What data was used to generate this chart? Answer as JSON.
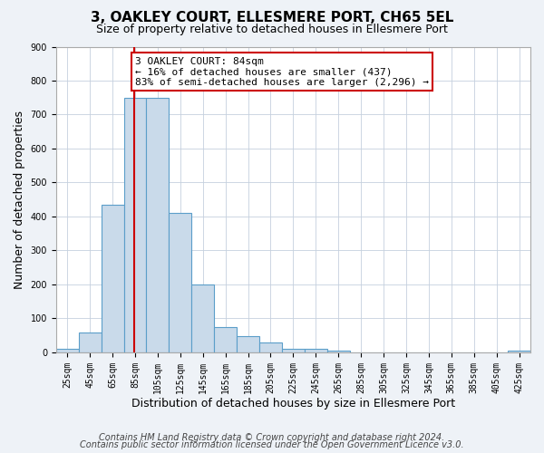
{
  "title": "3, OAKLEY COURT, ELLESMERE PORT, CH65 5EL",
  "subtitle": "Size of property relative to detached houses in Ellesmere Port",
  "xlabel": "Distribution of detached houses by size in Ellesmere Port",
  "ylabel": "Number of detached properties",
  "bar_color": "#c9daea",
  "bar_edge_color": "#5b9ec9",
  "bin_edges": [
    15,
    35,
    55,
    75,
    95,
    115,
    135,
    155,
    175,
    195,
    215,
    235,
    255,
    275,
    295,
    315,
    335,
    355,
    375,
    395,
    415,
    435
  ],
  "bar_heights": [
    10,
    58,
    435,
    750,
    750,
    410,
    200,
    75,
    47,
    30,
    10,
    10,
    5,
    0,
    0,
    0,
    0,
    0,
    0,
    0,
    5
  ],
  "tick_labels": [
    "25sqm",
    "45sqm",
    "65sqm",
    "85sqm",
    "105sqm",
    "125sqm",
    "145sqm",
    "165sqm",
    "185sqm",
    "205sqm",
    "225sqm",
    "245sqm",
    "265sqm",
    "285sqm",
    "305sqm",
    "325sqm",
    "345sqm",
    "365sqm",
    "385sqm",
    "405sqm",
    "425sqm"
  ],
  "tick_positions": [
    25,
    45,
    65,
    85,
    105,
    125,
    145,
    165,
    185,
    205,
    225,
    245,
    265,
    285,
    305,
    325,
    345,
    365,
    385,
    405,
    425
  ],
  "ylim": [
    0,
    900
  ],
  "yticks": [
    0,
    100,
    200,
    300,
    400,
    500,
    600,
    700,
    800,
    900
  ],
  "xlim": [
    15,
    435
  ],
  "property_line_x": 84,
  "property_line_color": "#cc0000",
  "annotation_line1": "3 OAKLEY COURT: 84sqm",
  "annotation_line2": "← 16% of detached houses are smaller (437)",
  "annotation_line3": "83% of semi-detached houses are larger (2,296) →",
  "annotation_box_color": "#ffffff",
  "annotation_box_edge_color": "#cc0000",
  "footer_line1": "Contains HM Land Registry data © Crown copyright and database right 2024.",
  "footer_line2": "Contains public sector information licensed under the Open Government Licence v3.0.",
  "background_color": "#eef2f7",
  "plot_background_color": "#ffffff",
  "grid_color": "#c5d0de",
  "title_fontsize": 11,
  "subtitle_fontsize": 9,
  "xlabel_fontsize": 9,
  "ylabel_fontsize": 9,
  "tick_fontsize": 7,
  "annotation_fontsize": 8,
  "footer_fontsize": 7
}
